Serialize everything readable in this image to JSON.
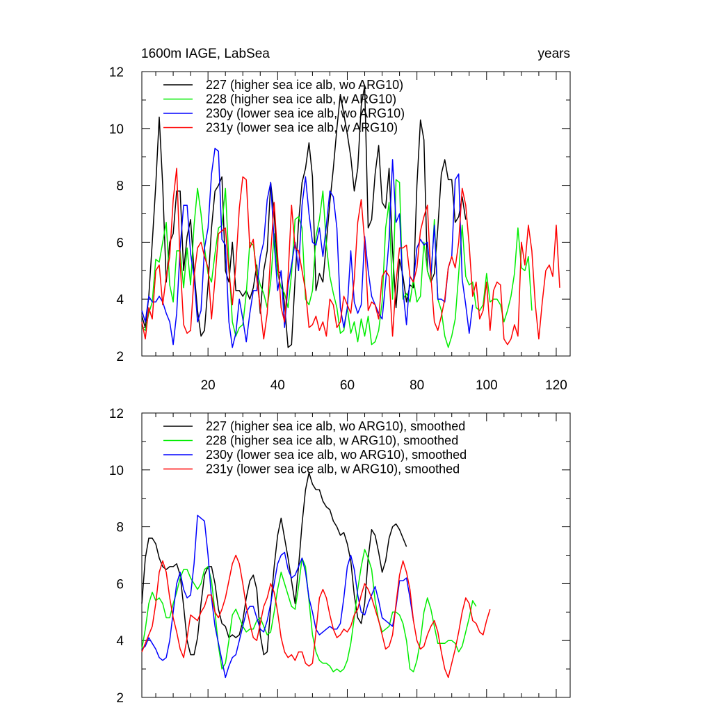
{
  "header": {
    "title": "1600m IAGE, LabSea",
    "units": "years"
  },
  "chart_data": [
    {
      "type": "line",
      "title": "1600m IAGE, LabSea",
      "ylabel_right": "years",
      "xlim": [
        1,
        124
      ],
      "ylim": [
        2,
        12
      ],
      "x_ticks": [
        20,
        40,
        60,
        80,
        100,
        120
      ],
      "y_ticks": [
        2,
        4,
        6,
        8,
        10,
        12
      ],
      "legend_position": "top-left",
      "series": [
        {
          "name": "227 (higher sea ice alb, wo ARG10)",
          "color": "#000000",
          "values": [
            3.4,
            3.0,
            4.1,
            6.0,
            8.0,
            10.4,
            8.0,
            4.6,
            6.0,
            6.3,
            7.8,
            7.8,
            5.0,
            6.2,
            6.8,
            5.0,
            3.6,
            2.7,
            2.9,
            4.5,
            6.5,
            7.8,
            8.0,
            8.3,
            5.0,
            4.6,
            6.0,
            4.3,
            4.3,
            4.1,
            4.3,
            4.0,
            4.4,
            5.2,
            3.5,
            5.0,
            5.7,
            8.1,
            7.0,
            5.0,
            4.9,
            3.8,
            2.3,
            2.4,
            4.7,
            6.7,
            8.1,
            8.6,
            9.5,
            8.3,
            4.3,
            4.9,
            4.6,
            6.0,
            7.4,
            8.6,
            10.0,
            11.2,
            10.5,
            9.8,
            9.0,
            7.8,
            8.6,
            10.8,
            11.5,
            6.5,
            6.8,
            8.4,
            9.4,
            7.4,
            7.2,
            8.6,
            5.7,
            3.7,
            5.4,
            4.8,
            3.9,
            4.5,
            4.4,
            8.0,
            10.3,
            9.6,
            5.0,
            4.6,
            4.9,
            6.5,
            8.4,
            8.9,
            8.2,
            8.2,
            6.7,
            6.9,
            7.6,
            6.8
          ]
        },
        {
          "name": "228 (higher sea ice alb, w ARG10)",
          "color": "#00ee00",
          "values": [
            3.0,
            2.9,
            3.5,
            3.9,
            5.4,
            5.3,
            6.0,
            6.7,
            4.5,
            3.9,
            5.7,
            5.7,
            4.4,
            5.8,
            4.5,
            6.6,
            7.9,
            7.0,
            5.8,
            4.9,
            4.6,
            5.6,
            6.5,
            6.6,
            7.9,
            5.3,
            3.2,
            2.7,
            3.0,
            3.1,
            4.2,
            6.0,
            5.9,
            5.0,
            4.5,
            4.2,
            3.7,
            4.6,
            6.3,
            4.9,
            4.4,
            4.2,
            3.7,
            4.9,
            6.8,
            6.9,
            6.5,
            4.0,
            3.8,
            4.3,
            6.2,
            6.8,
            7.8,
            5.9,
            4.8,
            4.2,
            3.7,
            2.8,
            2.9,
            3.7,
            2.8,
            3.2,
            2.5,
            3.3,
            2.7,
            3.4,
            2.4,
            2.5,
            2.9,
            3.9,
            6.5,
            7.4,
            4.0,
            8.2,
            8.1,
            4.0,
            4.2,
            3.9,
            4.7,
            3.9,
            4.1,
            6.0,
            5.0,
            4.6,
            6.8,
            4.0,
            3.6,
            2.7,
            2.3,
            2.7,
            3.3,
            4.9,
            6.6,
            4.8,
            4.5,
            4.6,
            3.7,
            3.6,
            3.8,
            4.9,
            3.9,
            4.0,
            4.0,
            3.8,
            3.2,
            3.6,
            4.1,
            4.9,
            6.5,
            5.1,
            5.0,
            5.5,
            3.6
          ]
        },
        {
          "name": "230y (lower sea ice alb, wo ARG10)",
          "color": "#0000ff",
          "values": [
            3.6,
            3.2,
            4.1,
            3.9,
            3.9,
            4.1,
            3.9,
            3.5,
            3.2,
            2.4,
            3.5,
            5.8,
            7.3,
            7.3,
            5.6,
            4.8,
            3.2,
            3.6,
            5.8,
            6.5,
            8.4,
            9.3,
            9.2,
            6.1,
            5.9,
            3.2,
            2.3,
            2.8,
            4.0,
            3.3,
            2.5,
            3.5,
            4.3,
            4.3,
            5.5,
            6.0,
            7.5,
            8.1,
            6.0,
            4.3,
            5.0,
            3.0,
            4.5,
            5.2,
            6.0,
            5.0,
            7.3,
            8.3,
            7.0,
            6.0,
            5.9,
            6.5,
            5.5,
            6.6,
            7.8,
            7.6,
            6.5,
            3.7,
            3.0,
            3.7,
            5.7,
            3.9,
            3.5,
            3.8,
            6.2,
            5.0,
            4.1,
            3.8,
            3.5,
            3.3,
            4.6,
            6.1,
            8.9,
            6.7,
            7.0,
            4.3,
            3.1,
            4.8,
            4.6,
            5.8,
            6.1,
            5.9,
            6.0,
            4.8,
            6.6,
            4.0,
            4.0,
            3.9,
            5.1,
            5.5,
            8.2,
            8.4,
            4.7,
            3.8,
            2.8,
            3.8
          ]
        },
        {
          "name": "231y (lower sea ice alb, w ARG10)",
          "color": "#ff0000",
          "values": [
            3.2,
            2.6,
            3.7,
            3.3,
            5.0,
            5.2,
            3.8,
            4.8,
            5.5,
            7.5,
            8.6,
            5.3,
            3.1,
            2.8,
            2.9,
            4.8,
            5.8,
            6.0,
            5.5,
            5.1,
            3.3,
            4.7,
            6.3,
            6.4,
            6.5,
            5.0,
            3.8,
            5.2,
            7.2,
            8.3,
            8.2,
            5.8,
            6.1,
            4.7,
            3.7,
            2.6,
            3.5,
            5.6,
            7.4,
            5.5,
            3.7,
            3.2,
            4.8,
            7.3,
            5.8,
            5.7,
            5.0,
            4.3,
            3.0,
            3.1,
            3.4,
            2.9,
            3.2,
            2.7,
            4.0,
            3.8,
            3.0,
            3.2,
            4.1,
            3.8,
            3.5,
            4.7,
            6.7,
            7.5,
            6.0,
            3.6,
            3.9,
            3.8,
            3.3,
            4.8,
            5.0,
            4.8,
            2.7,
            4.6,
            5.8,
            5.8,
            5.9,
            4.8,
            4.6,
            5.1,
            6.4,
            6.9,
            7.3,
            4.8,
            3.2,
            2.9,
            3.4,
            4.0,
            5.1,
            5.5,
            5.1,
            6.0,
            7.9,
            7.3,
            5.9,
            4.1,
            4.6,
            3.3,
            3.6,
            4.6,
            2.9,
            4.3,
            4.6,
            4.5,
            2.6,
            2.4,
            2.6,
            3.1,
            2.7,
            6.0,
            5.2,
            6.6,
            5.7,
            3.8,
            2.6,
            3.9,
            5.0,
            5.2,
            4.8,
            6.6,
            4.4
          ]
        }
      ]
    },
    {
      "type": "line",
      "title": "",
      "xlim": [
        1,
        124
      ],
      "ylim": [
        2,
        12
      ],
      "y_ticks": [
        2,
        4,
        6,
        8,
        10,
        12
      ],
      "legend_position": "top-left",
      "series": [
        {
          "name": "227 (higher sea ice alb, wo ARG10), smoothed",
          "color": "#000000",
          "values": [
            5.3,
            6.9,
            7.6,
            7.6,
            7.4,
            6.9,
            6.6,
            6.5,
            6.6,
            6.6,
            6.7,
            6.3,
            5.2,
            4.0,
            3.5,
            3.5,
            4.1,
            5.3,
            6.3,
            6.6,
            6.6,
            6.0,
            5.1,
            4.6,
            4.5,
            4.1,
            4.2,
            4.1,
            4.2,
            4.7,
            5.5,
            6.1,
            6.3,
            5.8,
            4.2,
            3.5,
            3.6,
            5.2,
            6.6,
            7.7,
            8.3,
            7.6,
            6.9,
            6.1,
            5.3,
            6.6,
            8.1,
            9.3,
            9.9,
            9.5,
            9.3,
            9.3,
            8.9,
            8.7,
            8.6,
            8.2,
            8.0,
            7.7,
            7.8,
            7.4,
            6.8,
            5.6,
            4.8,
            4.6,
            5.3,
            6.9,
            7.9,
            7.7,
            7.1,
            6.4,
            6.8,
            7.6,
            8.0,
            8.1,
            7.9,
            7.6,
            7.3
          ]
        },
        {
          "name": "228 (higher sea ice alb, w ARG10), smoothed",
          "color": "#00ee00",
          "values": [
            3.7,
            4.4,
            5.3,
            5.7,
            5.4,
            5.5,
            5.3,
            4.8,
            4.8,
            5.3,
            5.7,
            6.2,
            6.5,
            6.5,
            6.2,
            6.0,
            5.8,
            6.0,
            6.5,
            6.6,
            6.1,
            5.0,
            3.8,
            3.0,
            3.2,
            4.0,
            4.9,
            5.1,
            4.8,
            4.5,
            4.3,
            4.4,
            4.4,
            4.7,
            4.8,
            4.5,
            4.2,
            4.3,
            5.0,
            5.8,
            6.4,
            6.0,
            5.6,
            5.2,
            5.1,
            5.9,
            6.9,
            6.6,
            5.4,
            4.2,
            3.6,
            3.3,
            3.2,
            3.2,
            3.1,
            2.9,
            3.0,
            2.9,
            3.0,
            3.3,
            3.9,
            4.8,
            5.8,
            6.6,
            7.2,
            6.9,
            6.5,
            5.4,
            4.7,
            4.3,
            4.4,
            4.5,
            5.0,
            5.0,
            4.9,
            4.6,
            4.0,
            3.0,
            2.9,
            3.3,
            4.0,
            5.0,
            5.5,
            5.1,
            4.5,
            3.9,
            3.9,
            3.9,
            4.0,
            4.0,
            3.9,
            3.6,
            3.8,
            4.3,
            4.8,
            5.4,
            5.2
          ]
        },
        {
          "name": "230y (lower sea ice alb, wo ARG10), smoothed",
          "color": "#0000ff",
          "values": [
            3.7,
            3.8,
            4.1,
            3.9,
            3.7,
            3.4,
            3.3,
            3.4,
            4.0,
            5.0,
            6.0,
            6.4,
            5.8,
            5.5,
            5.6,
            6.7,
            8.4,
            8.3,
            8.2,
            7.0,
            5.5,
            4.5,
            3.9,
            3.3,
            2.7,
            3.1,
            3.4,
            3.5,
            4.0,
            4.5,
            5.0,
            5.2,
            5.2,
            4.8,
            4.4,
            4.3,
            4.7,
            5.3,
            6.0,
            6.7,
            7.0,
            7.1,
            6.5,
            6.2,
            6.3,
            6.6,
            6.9,
            6.4,
            5.5,
            5.0,
            4.4,
            4.2,
            4.3,
            4.4,
            4.5,
            4.4,
            4.4,
            4.6,
            5.5,
            6.6,
            7.0,
            6.5,
            5.6,
            5.0,
            4.9,
            5.3,
            5.6,
            5.9,
            5.4,
            4.8,
            4.7,
            4.6,
            4.5,
            5.2,
            6.1,
            6.1,
            6.2,
            5.5,
            4.7
          ]
        },
        {
          "name": "231y (lower sea ice alb, w ARG10), smoothed",
          "color": "#ff0000",
          "values": [
            3.6,
            3.9,
            4.2,
            4.5,
            5.3,
            6.4,
            6.8,
            6.4,
            5.5,
            4.8,
            4.3,
            3.7,
            3.4,
            4.1,
            4.9,
            4.8,
            4.7,
            5.0,
            5.2,
            5.6,
            5.6,
            5.0,
            4.8,
            5.1,
            5.5,
            6.1,
            6.7,
            7.0,
            6.7,
            6.0,
            5.2,
            4.6,
            4.1,
            4.0,
            4.6,
            5.2,
            5.5,
            6.0,
            5.7,
            5.0,
            4.1,
            3.6,
            3.4,
            3.5,
            3.3,
            3.6,
            3.6,
            3.2,
            3.1,
            3.2,
            4.3,
            5.5,
            5.8,
            5.5,
            4.9,
            4.4,
            4.1,
            4.2,
            4.4,
            4.3,
            4.5,
            4.9,
            5.1,
            5.6,
            6.0,
            5.8,
            5.5,
            5.1,
            4.7,
            4.2,
            3.7,
            3.8,
            4.2,
            5.3,
            6.3,
            6.8,
            6.4,
            5.8,
            4.7,
            4.0,
            3.7,
            3.8,
            4.2,
            4.5,
            4.7,
            4.3,
            3.6,
            3.0,
            2.7,
            3.2,
            3.7,
            4.3,
            5.0,
            5.5,
            5.3,
            4.7,
            4.6,
            4.3,
            4.2,
            4.7,
            5.1
          ]
        }
      ]
    }
  ]
}
